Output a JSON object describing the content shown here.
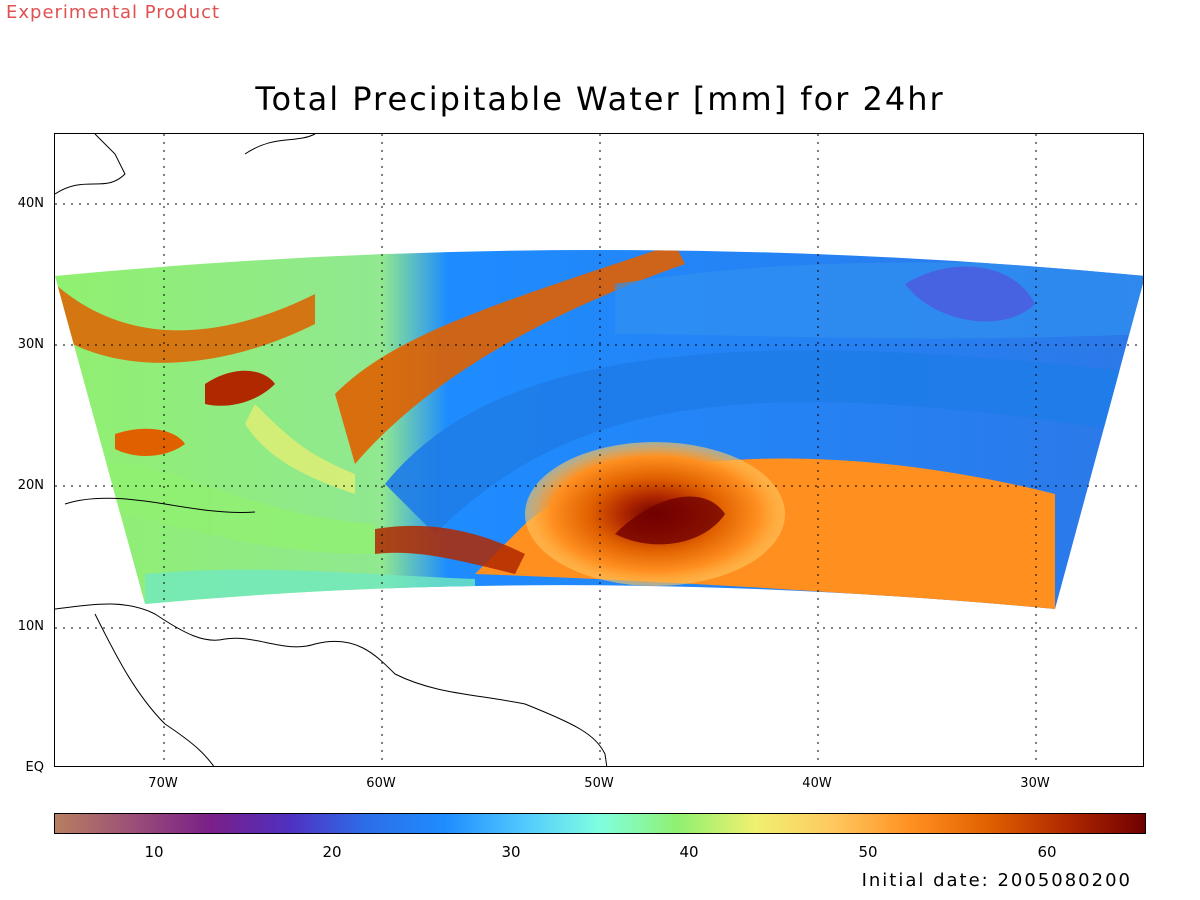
{
  "header": {
    "product_note": "Experimental Product",
    "title": "Total Precipitable Water [mm] for 24hr"
  },
  "map": {
    "lat_labels": [
      "EQ",
      "10N",
      "20N",
      "30N",
      "40N"
    ],
    "lon_labels": [
      "70W",
      "60W",
      "50W",
      "40W",
      "30W"
    ],
    "colorbar_ticks": [
      "10",
      "20",
      "30",
      "40",
      "50",
      "60"
    ],
    "colorbar_stops": [
      "#b77f60",
      "#9a4f78",
      "#7a1f88",
      "#5030c0",
      "#2c6ee8",
      "#1e8cff",
      "#50c8ff",
      "#80ffe0",
      "#90f070",
      "#f0f070",
      "#ffc860",
      "#ff9020",
      "#e06000",
      "#b02800",
      "#700000"
    ],
    "color_scale_range": [
      5,
      66
    ],
    "contour_colors": {
      "dry": "#1e7ce8",
      "moist": "#ff9020",
      "very_moist": "#a02000",
      "mid": "#80e890"
    }
  },
  "footer": {
    "initial_date_label": "Initial date: 2005080200"
  },
  "colors": {
    "annotation_red": "#e05050",
    "text": "#000000"
  }
}
